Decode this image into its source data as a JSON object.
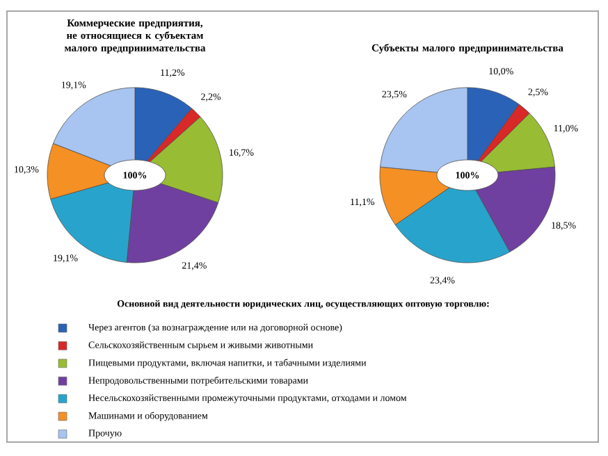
{
  "chart_data": [
    {
      "type": "pie",
      "title": "Коммерческие предприятия, не относящиеся к субъектам малого предпринимательства",
      "categories": [
        "Через агентов (за вознаграждение или на договорной основе)",
        "Сельскохозяйственным сырьем и живыми животными",
        "Пищевыми продуктами,  включая напитки, и табачными изделиями",
        "Непродовольственными потребительскими товарами",
        "Несельскохозяйственными  промежуточными продуктами, отходами и ломом",
        "Машинами и оборудованием",
        "Прочую"
      ],
      "values": [
        11.2,
        2.2,
        16.7,
        21.4,
        19.1,
        10.3,
        19.1
      ],
      "value_labels": [
        "11,2%",
        "2,2%",
        "16,7%",
        "21,4%",
        "19,1%",
        "10,3%",
        "19,1%"
      ],
      "colors": [
        "#2a62b8",
        "#d82828",
        "#98bc34",
        "#7040a0",
        "#28a4cc",
        "#f49024",
        "#a8c4f0"
      ],
      "annotations": [
        "100%"
      ],
      "legend": "bottom",
      "legend_title": "Основной вид деятельности юридических лиц, осуществляющих оптовую торговлю:"
    },
    {
      "type": "pie",
      "title": "Субъекты малого предпринимательства",
      "categories": [
        null,
        null,
        null,
        null,
        null,
        null,
        null
      ],
      "values": [
        10.0,
        2.5,
        11.0,
        18.5,
        23.4,
        11.1,
        23.5
      ],
      "value_labels": [
        "10,0%",
        "2,5%",
        "11,0%",
        "18,5%",
        "23,4%",
        "11,1%",
        "23,5%"
      ],
      "colors": [
        "#2a62b8",
        "#d82828",
        "#98bc34",
        "#7040a0",
        "#28a4cc",
        "#f49024",
        "#a8c4f0"
      ],
      "annotations": [
        "100%"
      ],
      "legend": false
    }
  ]
}
